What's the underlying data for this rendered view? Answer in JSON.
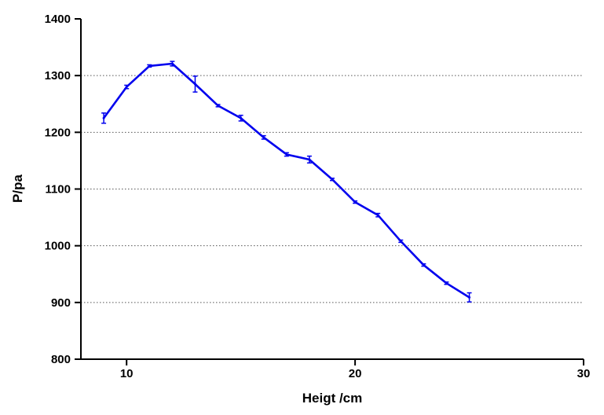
{
  "chart_data": {
    "type": "line",
    "title": "",
    "xlabel": "Heigt /cm",
    "ylabel": "P/pa",
    "xlim": [
      8,
      30
    ],
    "ylim": [
      800,
      1400
    ],
    "xticks": [
      10,
      20,
      30
    ],
    "yticks": [
      800,
      900,
      1000,
      1100,
      1200,
      1300,
      1400
    ],
    "grid": "horizontal-dotted",
    "legend": "none",
    "color": "#0000ee",
    "series": [
      {
        "x": [
          9,
          10,
          11,
          12,
          13,
          14,
          15,
          16,
          17,
          18,
          19,
          20,
          21,
          22,
          23,
          24,
          25
        ],
        "y": [
          1225,
          1280,
          1317,
          1321,
          1285,
          1247,
          1225,
          1191,
          1161,
          1152,
          1117,
          1077,
          1054,
          1008,
          966,
          934,
          909
        ],
        "err": [
          9,
          3,
          2,
          4,
          14,
          2,
          5,
          3,
          3,
          6,
          2,
          2,
          3,
          2,
          2,
          2,
          8
        ]
      }
    ]
  }
}
